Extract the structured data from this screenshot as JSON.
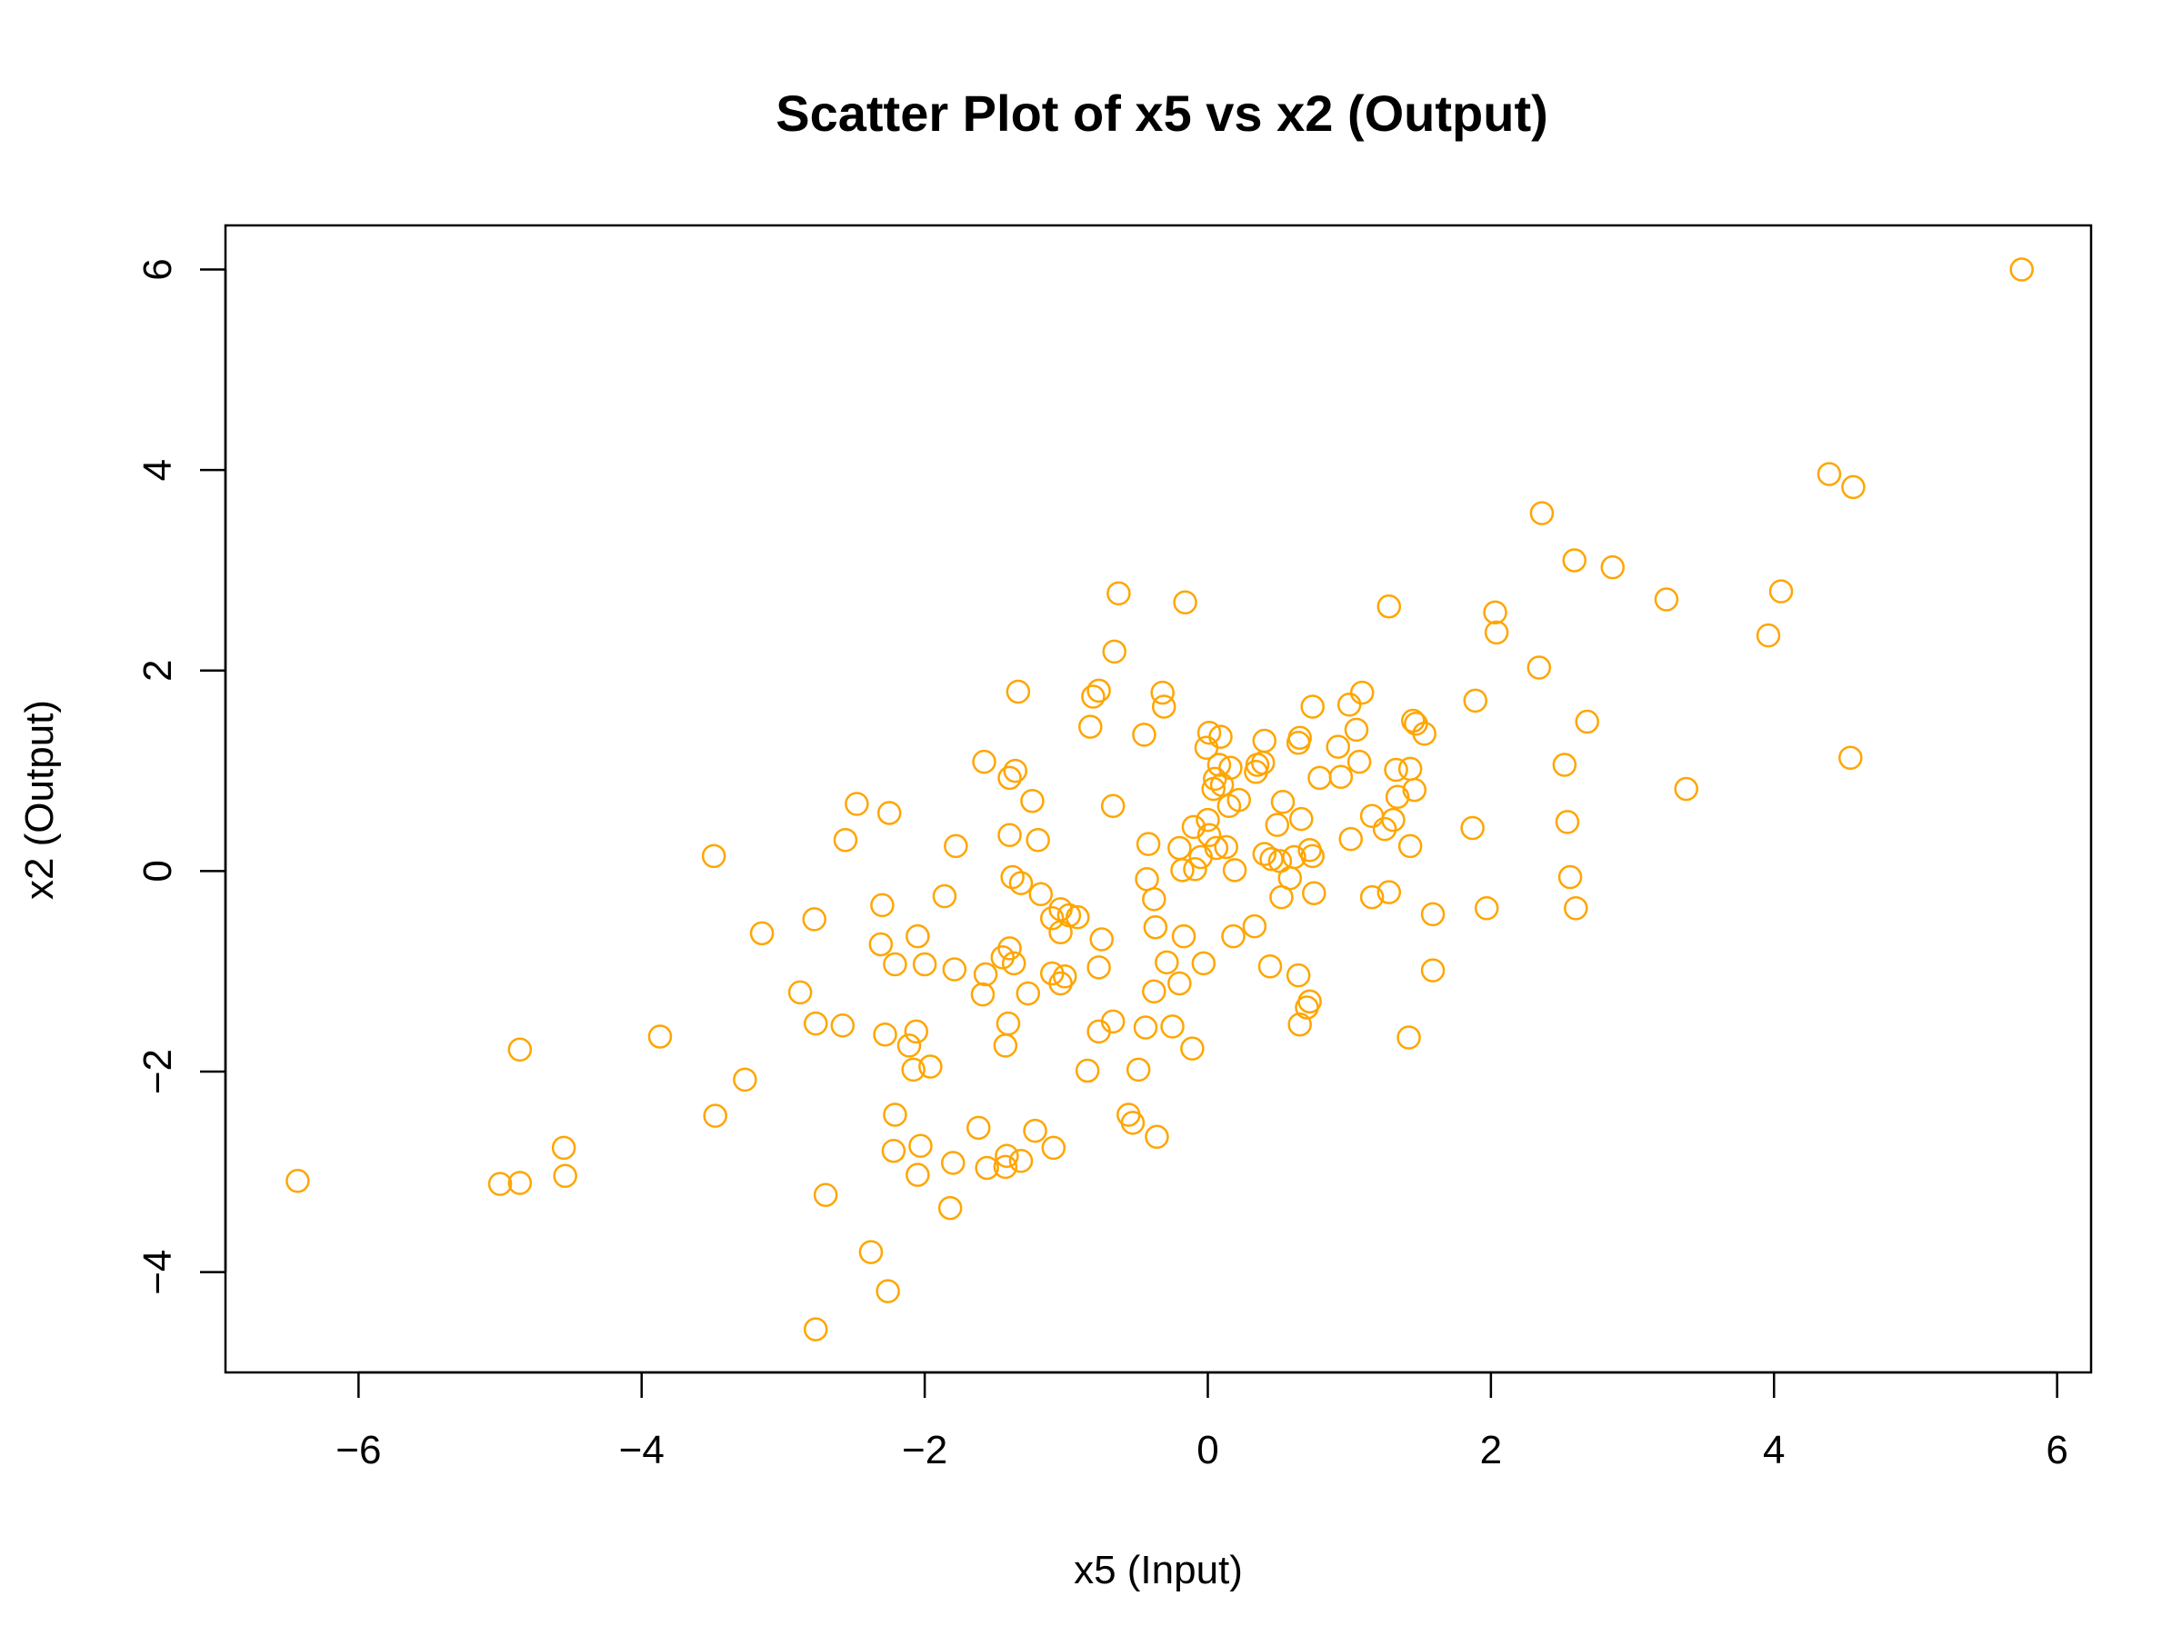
{
  "chart_data": {
    "type": "scatter",
    "title": "Scatter Plot of x5 vs x2 (Output)",
    "xlabel": "x5 (Input)",
    "ylabel": "x2 (Output)",
    "xlim": [
      -6.94,
      6.24
    ],
    "ylim": [
      -5.0,
      6.44
    ],
    "x_ticks": [
      -6,
      -4,
      -2,
      0,
      2,
      4,
      6
    ],
    "y_ticks": [
      -4,
      -2,
      0,
      2,
      4,
      6
    ],
    "x_tick_labels": [
      "−6",
      "−4",
      "−2",
      "0",
      "2",
      "4",
      "6"
    ],
    "y_tick_labels": [
      "−4",
      "−2",
      "0",
      "2",
      "4",
      "6"
    ],
    "grid": false,
    "marker": "open-circle",
    "color": "#FFA500",
    "points": [
      [
        5.75,
        6.0
      ],
      [
        4.39,
        3.96
      ],
      [
        4.56,
        3.83
      ],
      [
        4.54,
        1.13
      ],
      [
        3.96,
        2.35
      ],
      [
        4.05,
        2.79
      ],
      [
        2.36,
        3.57
      ],
      [
        2.59,
        3.1
      ],
      [
        2.86,
        3.03
      ],
      [
        3.24,
        2.71
      ],
      [
        3.38,
        0.82
      ],
      [
        2.03,
        2.58
      ],
      [
        2.04,
        2.38
      ],
      [
        2.34,
        2.03
      ],
      [
        2.68,
        1.49
      ],
      [
        2.52,
        1.06
      ],
      [
        2.54,
        0.49
      ],
      [
        2.56,
        -0.06
      ],
      [
        2.6,
        -0.37
      ],
      [
        1.28,
        2.64
      ],
      [
        1.09,
        1.78
      ],
      [
        1.89,
        1.7
      ],
      [
        1.87,
        0.43
      ],
      [
        1.97,
        -0.37
      ],
      [
        1.59,
        -0.43
      ],
      [
        1.59,
        -0.99
      ],
      [
        1.42,
        -1.66
      ],
      [
        1.45,
        1.5
      ],
      [
        1.47,
        1.47
      ],
      [
        1.53,
        1.37
      ],
      [
        1.33,
        1.01
      ],
      [
        1.43,
        1.02
      ],
      [
        1.46,
        0.81
      ],
      [
        1.34,
        0.74
      ],
      [
        1.16,
        0.55
      ],
      [
        1.31,
        0.51
      ],
      [
        1.25,
        0.42
      ],
      [
        1.01,
        0.32
      ],
      [
        1.43,
        0.25
      ],
      [
        1.16,
        -0.26
      ],
      [
        1.28,
        -0.21
      ],
      [
        0.74,
        1.64
      ],
      [
        1.0,
        1.66
      ],
      [
        1.05,
        1.41
      ],
      [
        0.92,
        1.24
      ],
      [
        1.07,
        1.09
      ],
      [
        0.79,
        0.93
      ],
      [
        0.94,
        0.94
      ],
      [
        0.64,
        1.28
      ],
      [
        0.65,
        1.33
      ],
      [
        0.4,
        1.3
      ],
      [
        0.35,
        1.06
      ],
      [
        0.39,
        1.08
      ],
      [
        0.34,
        0.99
      ],
      [
        0.53,
        0.69
      ],
      [
        0.66,
        0.52
      ],
      [
        0.49,
        0.46
      ],
      [
        0.72,
        0.21
      ],
      [
        0.74,
        0.15
      ],
      [
        0.61,
        0.14
      ],
      [
        0.45,
        0.12
      ],
      [
        0.4,
        0.17
      ],
      [
        0.51,
        0.1
      ],
      [
        0.58,
        -0.07
      ],
      [
        0.52,
        -0.26
      ],
      [
        0.75,
        -0.22
      ],
      [
        0.33,
        -0.55
      ],
      [
        0.44,
        -0.95
      ],
      [
        0.64,
        -1.04
      ],
      [
        0.72,
        -1.3
      ],
      [
        0.7,
        -1.36
      ],
      [
        0.65,
        -1.53
      ],
      [
        -0.16,
        2.68
      ],
      [
        -0.32,
        1.78
      ],
      [
        -0.31,
        1.64
      ],
      [
        -0.45,
        1.36
      ],
      [
        0.01,
        1.38
      ],
      [
        0.09,
        1.34
      ],
      [
        -0.01,
        1.23
      ],
      [
        0.08,
        1.06
      ],
      [
        0.16,
        1.03
      ],
      [
        0.05,
        0.92
      ],
      [
        0.1,
        0.86
      ],
      [
        0.04,
        0.82
      ],
      [
        0.22,
        0.71
      ],
      [
        0.15,
        0.65
      ],
      [
        0.0,
        0.51
      ],
      [
        -0.1,
        0.44
      ],
      [
        0.01,
        0.36
      ],
      [
        0.06,
        0.23
      ],
      [
        0.13,
        0.24
      ],
      [
        -0.2,
        0.23
      ],
      [
        -0.05,
        0.14
      ],
      [
        -0.09,
        0.02
      ],
      [
        0.19,
        0.01
      ],
      [
        -0.18,
        0.01
      ],
      [
        -0.42,
        0.27
      ],
      [
        -0.43,
        -0.08
      ],
      [
        -0.38,
        -0.28
      ],
      [
        -0.37,
        -0.56
      ],
      [
        -0.17,
        -0.65
      ],
      [
        0.18,
        -0.65
      ],
      [
        -0.29,
        -0.91
      ],
      [
        -0.03,
        -0.92
      ],
      [
        -0.2,
        -1.12
      ],
      [
        -0.38,
        -1.2
      ],
      [
        -0.63,
        2.77
      ],
      [
        -0.66,
        2.19
      ],
      [
        -0.77,
        1.8
      ],
      [
        -0.81,
        1.74
      ],
      [
        -0.83,
        1.44
      ],
      [
        -0.67,
        0.65
      ],
      [
        -0.75,
        -0.68
      ],
      [
        -0.77,
        -0.96
      ],
      [
        -0.67,
        -1.5
      ],
      [
        -0.77,
        -1.6
      ],
      [
        -0.44,
        -1.56
      ],
      [
        -0.25,
        -1.55
      ],
      [
        -0.11,
        -1.77
      ],
      [
        -0.49,
        -1.98
      ],
      [
        -0.85,
        -1.99
      ],
      [
        -0.56,
        -2.43
      ],
      [
        -0.53,
        -2.51
      ],
      [
        -0.36,
        -2.65
      ],
      [
        -1.34,
        1.79
      ],
      [
        -1.36,
        1.0
      ],
      [
        -1.4,
        0.93
      ],
      [
        -1.58,
        1.09
      ],
      [
        -1.24,
        0.7
      ],
      [
        -1.2,
        0.31
      ],
      [
        -1.4,
        0.36
      ],
      [
        -1.38,
        -0.06
      ],
      [
        -1.32,
        -0.12
      ],
      [
        -1.18,
        -0.23
      ],
      [
        -1.1,
        -0.47
      ],
      [
        -1.04,
        -0.38
      ],
      [
        -0.98,
        -0.44
      ],
      [
        -0.92,
        -0.46
      ],
      [
        -1.04,
        -0.61
      ],
      [
        -1.4,
        -0.77
      ],
      [
        -1.45,
        -0.86
      ],
      [
        -1.37,
        -0.92
      ],
      [
        -1.1,
        -1.02
      ],
      [
        -1.01,
        -1.05
      ],
      [
        -1.04,
        -1.12
      ],
      [
        -1.27,
        -1.22
      ],
      [
        -1.41,
        -1.52
      ],
      [
        -1.43,
        -1.74
      ],
      [
        -1.78,
        0.25
      ],
      [
        -1.86,
        -0.25
      ],
      [
        -1.79,
        -0.98
      ],
      [
        -1.57,
        -1.03
      ],
      [
        -1.59,
        -1.23
      ],
      [
        -1.62,
        -2.56
      ],
      [
        -1.22,
        -2.59
      ],
      [
        -1.09,
        -2.76
      ],
      [
        -1.42,
        -2.84
      ],
      [
        -1.32,
        -2.89
      ],
      [
        -1.43,
        -2.95
      ],
      [
        -1.56,
        -2.96
      ],
      [
        -1.8,
        -2.91
      ],
      [
        -1.82,
        -3.36
      ],
      [
        -2.05,
        -0.65
      ],
      [
        -2.0,
        -0.93
      ],
      [
        -2.06,
        -1.6
      ],
      [
        -2.11,
        -1.74
      ],
      [
        -1.96,
        -1.95
      ],
      [
        -2.08,
        -1.98
      ],
      [
        -2.03,
        -2.74
      ],
      [
        -2.05,
        -3.03
      ],
      [
        -2.48,
        0.67
      ],
      [
        -2.25,
        0.58
      ],
      [
        -2.56,
        0.31
      ],
      [
        -2.3,
        -0.34
      ],
      [
        -2.31,
        -0.73
      ],
      [
        -2.21,
        -0.93
      ],
      [
        -2.28,
        -1.63
      ],
      [
        -2.21,
        -2.43
      ],
      [
        -2.22,
        -2.79
      ],
      [
        -2.38,
        -3.8
      ],
      [
        -2.26,
        -4.19
      ],
      [
        -2.78,
        -0.48
      ],
      [
        -2.77,
        -1.52
      ],
      [
        -2.58,
        -1.54
      ],
      [
        -2.88,
        -1.21
      ],
      [
        -2.7,
        -3.23
      ],
      [
        -2.77,
        -4.57
      ],
      [
        -3.49,
        0.15
      ],
      [
        -3.15,
        -0.62
      ],
      [
        -3.27,
        -2.08
      ],
      [
        -3.48,
        -2.44
      ],
      [
        -3.87,
        -1.65
      ],
      [
        -4.86,
        -1.78
      ],
      [
        -4.55,
        -2.76
      ],
      [
        -4.54,
        -3.04
      ],
      [
        -4.86,
        -3.11
      ],
      [
        -5.0,
        -3.12
      ],
      [
        -6.43,
        -3.09
      ]
    ]
  }
}
